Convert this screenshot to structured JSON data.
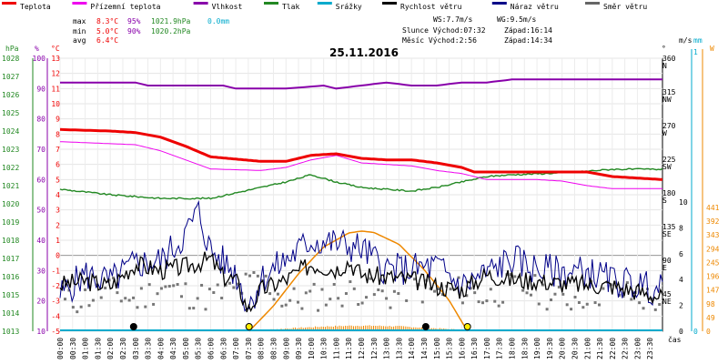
{
  "legend": [
    {
      "label": "Teplota",
      "color": "#ee0000"
    },
    {
      "label": "Přízemní teplota",
      "color": "#ee00ee"
    },
    {
      "label": "Vlhkost",
      "color": "#8800aa"
    },
    {
      "label": "Tlak",
      "color": "#228822"
    },
    {
      "label": "Srážky",
      "color": "#00aacc"
    },
    {
      "label": "Rychlost větru",
      "color": "#000000"
    },
    {
      "label": "Náraz větru",
      "color": "#000088"
    },
    {
      "label": "Směr větru",
      "color": "#666666"
    }
  ],
  "stats": {
    "max_label": "max",
    "max_temp": "8.3°C",
    "max_hum": "95%",
    "max_press": "1021.9hPa",
    "max_rain": "0.0mm",
    "min_label": "min",
    "min_temp": "5.0°C",
    "min_hum": "90%",
    "min_press": "1020.2hPa",
    "avg_label": "avg",
    "avg_temp": "6.4°C",
    "ws": "WS:7.7m/s",
    "wg": "WG:9.5m/s",
    "sun_rise": "Slunce Východ:07:32",
    "sun_set": "Západ:16:14",
    "moon_rise": "Měsíc  Východ:2:56",
    "moon_set": "Západ:14:34"
  },
  "colors": {
    "temp": "#ee0000",
    "ground": "#ee00ee",
    "hum": "#8800aa",
    "press": "#228822",
    "wind": "#000000",
    "gust": "#000088",
    "dir": "#777777",
    "sun": "#ee8800",
    "rain": "#00aacc"
  },
  "chart_data": {
    "type": "line",
    "title": "25.11.2016",
    "xlabel": "čas",
    "x_ticks": [
      "00:00",
      "00:30",
      "01:00",
      "01:30",
      "02:00",
      "02:30",
      "03:00",
      "03:30",
      "04:00",
      "04:30",
      "05:00",
      "05:30",
      "06:00",
      "06:30",
      "07:00",
      "07:30",
      "08:00",
      "08:30",
      "09:00",
      "09:30",
      "10:00",
      "10:30",
      "11:00",
      "11:30",
      "12:00",
      "12:30",
      "13:00",
      "13:30",
      "14:00",
      "14:30",
      "15:00",
      "15:30",
      "16:00",
      "16:30",
      "17:00",
      "17:30",
      "18:00",
      "18:30",
      "19:00",
      "19:30",
      "20:00",
      "20:30",
      "21:00",
      "21:30",
      "22:00",
      "22:30",
      "23:00",
      "23:30"
    ],
    "axes": {
      "hpa": {
        "unit": "hPa",
        "range": [
          1013,
          1028
        ],
        "ticks": [
          1013,
          1014,
          1015,
          1016,
          1017,
          1018,
          1019,
          1020,
          1021,
          1022,
          1023,
          1024,
          1025,
          1026,
          1027,
          1028
        ]
      },
      "pct": {
        "unit": "%",
        "range": [
          10,
          100
        ],
        "ticks": [
          10,
          20,
          30,
          40,
          50,
          60,
          70,
          80,
          90,
          100
        ]
      },
      "celsius": {
        "unit": "°C",
        "range": [
          -5,
          13
        ],
        "ticks": [
          -5,
          -4,
          -3,
          -2,
          -1,
          0,
          1,
          2,
          3,
          4,
          5,
          6,
          7,
          8,
          9,
          10,
          11,
          12,
          13
        ]
      },
      "direction": {
        "unit": "°",
        "ticks": [
          {
            "v": 45,
            "c": "NE"
          },
          {
            "v": 90,
            "c": "E"
          },
          {
            "v": 135,
            "c": "SE"
          },
          {
            "v": 180,
            "c": "S"
          },
          {
            "v": 225,
            "c": "SW"
          },
          {
            "v": 270,
            "c": "W"
          },
          {
            "v": 315,
            "c": "NW"
          },
          {
            "v": 360,
            "c": "N"
          }
        ]
      },
      "wind": {
        "unit": "m/s",
        "range": [
          0,
          10
        ],
        "ticks": [
          0,
          2,
          4,
          6,
          8,
          10
        ]
      },
      "rain": {
        "unit": "mm",
        "range": [
          0,
          1
        ],
        "ticks": [
          0,
          1
        ]
      },
      "solar": {
        "unit": "W",
        "range": [
          0,
          441
        ],
        "ticks": [
          0,
          49,
          98,
          147,
          196,
          245,
          294,
          343,
          392,
          441
        ]
      }
    },
    "series": [
      {
        "name": "Teplota",
        "unit": "°C",
        "points": [
          [
            0,
            8.3
          ],
          [
            2,
            8.2
          ],
          [
            3,
            8.1
          ],
          [
            4,
            7.8
          ],
          [
            5,
            7.2
          ],
          [
            6,
            6.5
          ],
          [
            8,
            6.2
          ],
          [
            9,
            6.2
          ],
          [
            10,
            6.6
          ],
          [
            11,
            6.7
          ],
          [
            12,
            6.4
          ],
          [
            13,
            6.3
          ],
          [
            14,
            6.3
          ],
          [
            15,
            6.1
          ],
          [
            16,
            5.8
          ],
          [
            16.5,
            5.5
          ],
          [
            20,
            5.5
          ],
          [
            21,
            5.5
          ],
          [
            22,
            5.2
          ],
          [
            24,
            5.0
          ]
        ]
      },
      {
        "name": "Přízemní teplota",
        "unit": "°C",
        "points": [
          [
            0,
            7.5
          ],
          [
            3,
            7.3
          ],
          [
            4,
            6.9
          ],
          [
            5,
            6.3
          ],
          [
            6,
            5.7
          ],
          [
            8,
            5.6
          ],
          [
            9,
            5.8
          ],
          [
            10,
            6.3
          ],
          [
            11,
            6.6
          ],
          [
            12,
            6.1
          ],
          [
            13,
            6.0
          ],
          [
            14,
            5.9
          ],
          [
            15,
            5.6
          ],
          [
            16,
            5.4
          ],
          [
            17,
            5.0
          ],
          [
            19,
            5.0
          ],
          [
            20,
            4.9
          ],
          [
            21,
            4.6
          ],
          [
            22,
            4.4
          ],
          [
            24,
            4.4
          ]
        ]
      },
      {
        "name": "Vlhkost",
        "unit": "%",
        "points": [
          [
            0,
            92
          ],
          [
            3,
            92
          ],
          [
            3.5,
            91
          ],
          [
            6.5,
            91
          ],
          [
            7,
            90
          ],
          [
            9,
            90
          ],
          [
            10.5,
            91
          ],
          [
            11,
            90
          ],
          [
            12,
            91
          ],
          [
            13,
            92
          ],
          [
            14,
            91
          ],
          [
            15,
            91
          ],
          [
            16,
            92
          ],
          [
            17,
            92
          ],
          [
            18,
            93
          ],
          [
            24,
            93
          ]
        ]
      },
      {
        "name": "Tlak",
        "unit": "hPa",
        "points": [
          [
            0,
            1020.8
          ],
          [
            2,
            1020.5
          ],
          [
            4,
            1020.3
          ],
          [
            6,
            1020.3
          ],
          [
            7,
            1020.6
          ],
          [
            8,
            1020.9
          ],
          [
            9,
            1021.2
          ],
          [
            10,
            1021.6
          ],
          [
            11,
            1021.2
          ],
          [
            12,
            1020.9
          ],
          [
            13,
            1020.8
          ],
          [
            14,
            1020.7
          ],
          [
            15,
            1020.9
          ],
          [
            16,
            1021.2
          ],
          [
            17,
            1021.5
          ],
          [
            18,
            1021.6
          ],
          [
            20,
            1021.7
          ],
          [
            22,
            1021.9
          ],
          [
            24,
            1021.9
          ]
        ]
      },
      {
        "name": "Rychlost větru",
        "unit": "m/s",
        "points": [
          [
            0,
            3.6
          ],
          [
            1,
            3.9
          ],
          [
            2,
            3.5
          ],
          [
            3,
            5.2
          ],
          [
            4,
            4.7
          ],
          [
            5,
            5.0
          ],
          [
            6,
            5.6
          ],
          [
            6.5,
            4.2
          ],
          [
            7,
            4.0
          ],
          [
            7.5,
            1.6
          ],
          [
            8,
            3.2
          ],
          [
            9,
            4.0
          ],
          [
            10,
            5.2
          ],
          [
            11,
            4.8
          ],
          [
            11.5,
            5.4
          ],
          [
            12,
            4.4
          ],
          [
            13,
            4.2
          ],
          [
            14,
            4.0
          ],
          [
            15,
            3.5
          ],
          [
            16,
            3.2
          ],
          [
            17,
            4.4
          ],
          [
            18,
            4.0
          ],
          [
            19,
            3.9
          ],
          [
            20,
            3.7
          ],
          [
            21,
            3.6
          ],
          [
            22,
            3.5
          ],
          [
            23,
            3.1
          ],
          [
            24,
            2.6
          ]
        ]
      },
      {
        "name": "Náraz větru",
        "unit": "m/s",
        "points": [
          [
            0,
            2.8
          ],
          [
            1,
            4.4
          ],
          [
            2,
            3.8
          ],
          [
            3,
            5.2
          ],
          [
            4,
            5.4
          ],
          [
            5,
            7.5
          ],
          [
            5.5,
            9.3
          ],
          [
            6,
            6.2
          ],
          [
            7,
            4.5
          ],
          [
            7.5,
            1.9
          ],
          [
            8,
            4.0
          ],
          [
            9,
            5.5
          ],
          [
            10,
            7.0
          ],
          [
            11,
            6.8
          ],
          [
            12,
            6.4
          ],
          [
            13,
            4.8
          ],
          [
            14,
            4.8
          ],
          [
            15,
            5.0
          ],
          [
            16,
            3.5
          ],
          [
            17,
            4.5
          ],
          [
            18,
            5.6
          ],
          [
            19,
            4.8
          ],
          [
            20,
            4.6
          ],
          [
            21,
            4.6
          ],
          [
            22,
            3.9
          ],
          [
            23,
            3.6
          ],
          [
            24,
            3.1
          ]
        ]
      },
      {
        "name": "Směr větru",
        "unit": "°",
        "points": [
          [
            0,
            35
          ],
          [
            1,
            45
          ],
          [
            2,
            55
          ],
          [
            3,
            40
          ],
          [
            4,
            60
          ],
          [
            5,
            50
          ],
          [
            6,
            45
          ],
          [
            7,
            55
          ],
          [
            8,
            70
          ],
          [
            9,
            40
          ],
          [
            10,
            45
          ],
          [
            11,
            50
          ],
          [
            12,
            55
          ],
          [
            13,
            45
          ],
          [
            14,
            60
          ],
          [
            15,
            50
          ],
          [
            16,
            55
          ],
          [
            17,
            45
          ],
          [
            18,
            60
          ],
          [
            19,
            55
          ],
          [
            20,
            40
          ],
          [
            21,
            50
          ],
          [
            22,
            55
          ],
          [
            23,
            45
          ],
          [
            24,
            40
          ]
        ]
      },
      {
        "name": "Sluneční záření",
        "unit": "W",
        "points": [
          [
            7.53,
            0
          ],
          [
            8.5,
            90
          ],
          [
            9.5,
            205
          ],
          [
            10.5,
            300
          ],
          [
            11.5,
            350
          ],
          [
            12,
            357
          ],
          [
            12.5,
            352
          ],
          [
            13.5,
            310
          ],
          [
            14.5,
            220
          ],
          [
            15.5,
            110
          ],
          [
            16.23,
            0
          ]
        ]
      },
      {
        "name": "Srážky",
        "unit": "mm",
        "points": [
          [
            0,
            0
          ],
          [
            24,
            0
          ]
        ]
      }
    ],
    "events": {
      "sunrise": 7.53,
      "sunset": 16.23,
      "moonrise": 2.93,
      "moonset": 14.57
    }
  }
}
